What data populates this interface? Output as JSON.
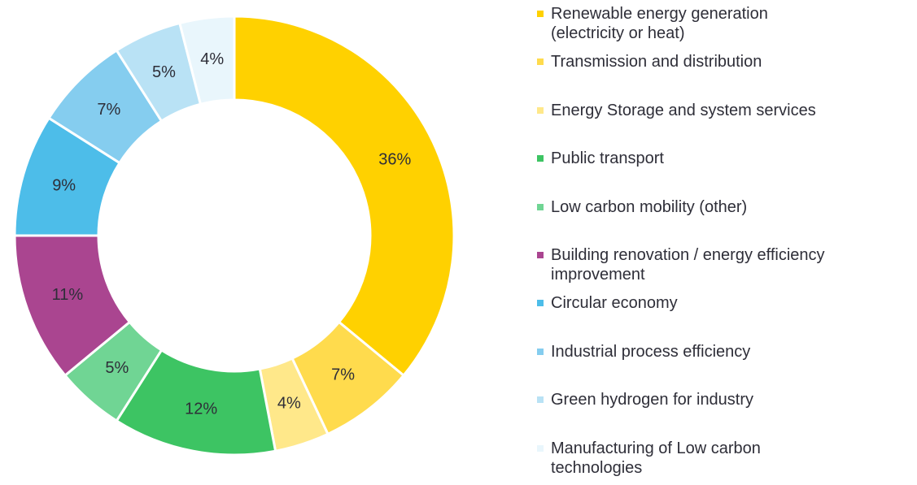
{
  "chart_data": {
    "type": "donut",
    "categories": [
      "Renewable energy generation\n(electricity or heat)",
      "Transmission and distribution",
      "Energy Storage and system services",
      "Public transport",
      "Low carbon mobility (other)",
      "Building renovation / energy efficiency\nimprovement",
      "Circular economy",
      "Industrial process efficiency",
      "Green hydrogen for industry",
      "Manufacturing of Low carbon\ntechnologies"
    ],
    "values": [
      36,
      7,
      4,
      12,
      5,
      11,
      9,
      7,
      5,
      4
    ],
    "value_labels": [
      "36%",
      "7%",
      "4%",
      "12%",
      "5%",
      "11%",
      "9%",
      "7%",
      "5%",
      "4%"
    ],
    "colors": [
      "#FFD100",
      "#FFDB4D",
      "#FFE88A",
      "#3DC463",
      "#70D594",
      "#AA4590",
      "#4DBDE9",
      "#85CDEF",
      "#B9E2F5",
      "#E9F6FC"
    ],
    "legend": "right"
  }
}
